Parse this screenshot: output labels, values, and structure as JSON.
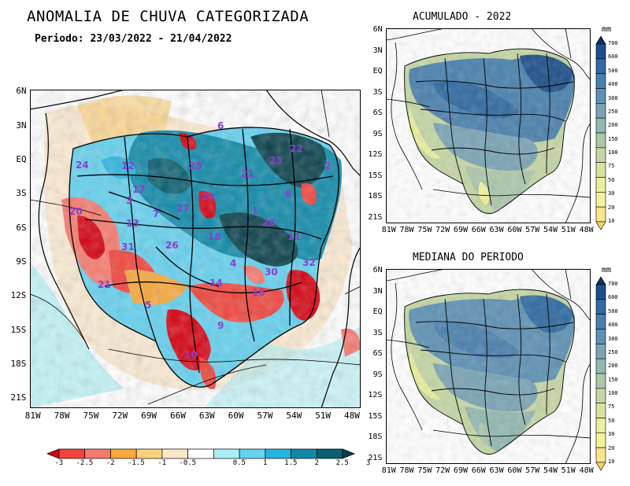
{
  "header": {
    "title": "ANOMALIA DE CHUVA CATEGORIZADA",
    "period": "Periodo: 23/03/2022 - 21/04/2022"
  },
  "main_map": {
    "lat_labels": [
      "6N",
      "3N",
      "EQ",
      "3S",
      "6S",
      "9S",
      "12S",
      "15S",
      "18S",
      "21S"
    ],
    "lon_labels": [
      "81W",
      "78W",
      "75W",
      "72W",
      "69W",
      "66W",
      "63W",
      "60W",
      "57W",
      "54W",
      "51W",
      "48W"
    ],
    "basin_numbers": [
      "6",
      "22",
      "24",
      "12",
      "25",
      "21",
      "23",
      "2",
      "3",
      "17",
      "27",
      "20",
      "7",
      "29",
      "8",
      "1",
      "28",
      "13",
      "18",
      "11",
      "31",
      "26",
      "4",
      "32",
      "30",
      "14",
      "16",
      "21",
      "5",
      "9",
      "10"
    ]
  },
  "colorbar_main": {
    "labels": [
      "-3",
      "-2.5",
      "-2",
      "-1.5",
      "-1",
      "-0.5",
      "0.5",
      "1",
      "1.5",
      "2",
      "2.5",
      "3"
    ],
    "colors": [
      "#d7000f",
      "#f2443c",
      "#f77a6f",
      "#f9a83c",
      "#fbd07a",
      "#fbe6c8",
      "#ffffff",
      "#a9eff5",
      "#64d2f0",
      "#27b4e0",
      "#0f8aaa",
      "#0a5f70",
      "#08404b"
    ]
  },
  "map_acumulado": {
    "title": "ACUMULADO - 2022",
    "lat_labels": [
      "6N",
      "3N",
      "EQ",
      "3S",
      "6S",
      "9S",
      "12S",
      "15S",
      "18S",
      "21S"
    ],
    "lon_labels": [
      "81W",
      "78W",
      "75W",
      "72W",
      "69W",
      "66W",
      "63W",
      "60W",
      "57W",
      "54W",
      "51W",
      "48W"
    ]
  },
  "map_mediana": {
    "title": "MEDIANA DO PERIODO",
    "lat_labels": [
      "6N",
      "3N",
      "EQ",
      "3S",
      "6S",
      "9S",
      "12S",
      "15S",
      "18S",
      "21S"
    ],
    "lon_labels": [
      "81W",
      "78W",
      "75W",
      "72W",
      "69W",
      "66W",
      "63W",
      "60W",
      "57W",
      "54W",
      "51W",
      "48W"
    ]
  },
  "colorbar_mm": {
    "unit": "mm",
    "labels": [
      "700",
      "600",
      "500",
      "400",
      "300",
      "250",
      "200",
      "150",
      "100",
      "75",
      "50",
      "30",
      "20",
      "10"
    ],
    "colors": [
      "#0b2f63",
      "#1d4f8a",
      "#2f6aa0",
      "#4a80ad",
      "#5e91b4",
      "#7aa4b5",
      "#93b8b2",
      "#acc7ac",
      "#c4d6a4",
      "#d8e49e",
      "#e9ef9c",
      "#f4f39a",
      "#f8e58c",
      "#f9cf6e"
    ]
  }
}
